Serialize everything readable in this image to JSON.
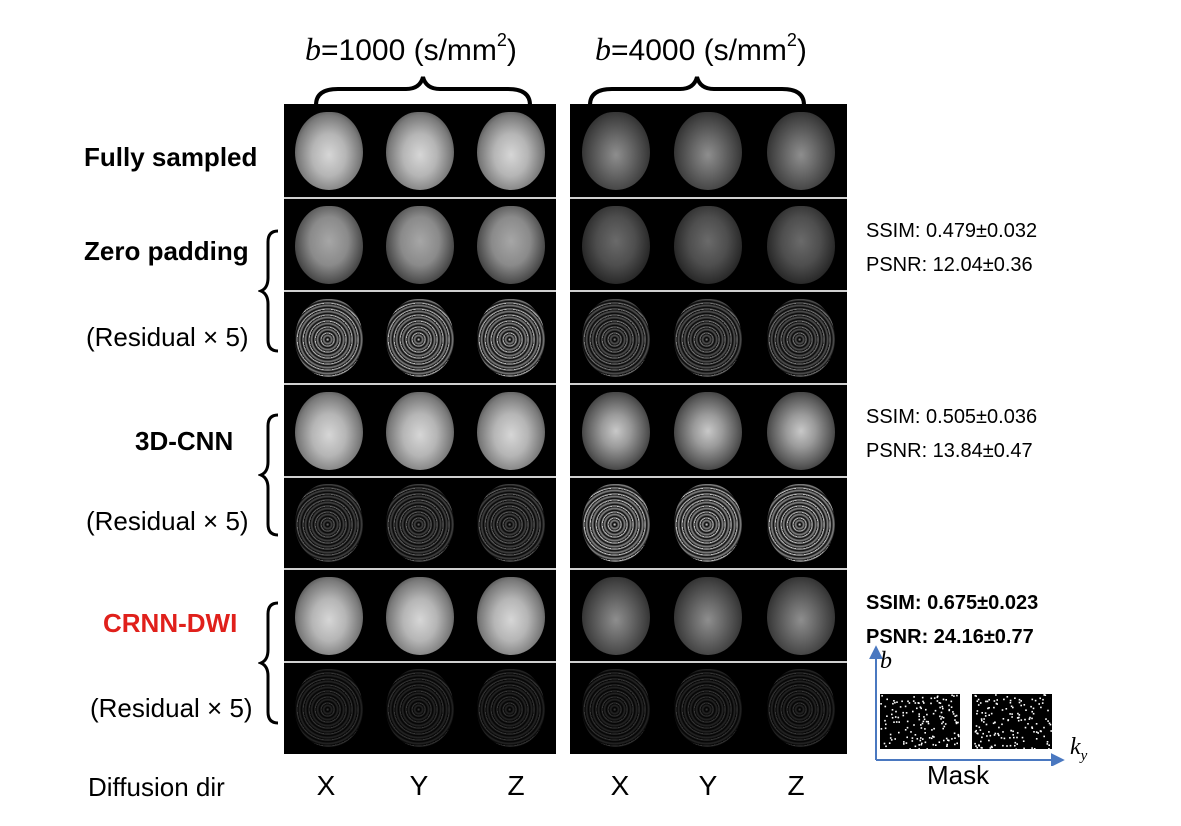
{
  "header": {
    "b1": {
      "sym": "b",
      "text": "=1000 (s/mm",
      "exp": "2",
      "close": ")"
    },
    "b2": {
      "sym": "b",
      "text": "=4000 (s/mm",
      "exp": "2",
      "close": ")"
    }
  },
  "rows": {
    "fully_sampled": "Fully sampled",
    "zero_padding": "Zero padding",
    "residual_1": "(Residual × 5)",
    "cnn3d": "3D-CNN",
    "residual_2": "(Residual × 5)",
    "crnn": "CRNN-DWI",
    "residual_3": "(Residual × 5)"
  },
  "metrics": {
    "zero_padding": {
      "ssim": "SSIM: 0.479±0.032",
      "psnr": "PSNR: 12.04±0.36"
    },
    "cnn3d": {
      "ssim": "SSIM: 0.505±0.036",
      "psnr": "PSNR: 13.84±0.47"
    },
    "crnn": {
      "ssim": "SSIM: 0.675±0.023",
      "psnr": "PSNR: 24.16±0.77"
    }
  },
  "mask": {
    "label": "Mask",
    "y_axis": "b",
    "x_axis": "k",
    "x_sub": "y"
  },
  "footer": {
    "label": "Diffusion dir",
    "dirs": [
      "X",
      "Y",
      "Z",
      "X",
      "Y",
      "Z"
    ]
  },
  "colors": {
    "highlight": "#e0201b",
    "axis": "#4a78c0"
  }
}
